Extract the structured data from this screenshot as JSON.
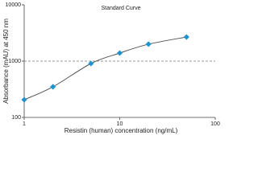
{
  "chart_data": {
    "type": "scatter",
    "title": "Standard Curve",
    "x_label": "Resistin (human) concentration (ng/mL)",
    "y_label": "Absorbance (mAU) at 450 nm",
    "x": [
      1,
      2,
      5,
      10,
      20,
      50
    ],
    "series": [
      {
        "color": "#1f93d0",
        "values": [
          206,
          350,
          906,
          1390,
          2000,
          2680
        ]
      }
    ],
    "fit_line": true,
    "fit_color": "#555555",
    "reference_line": 1000,
    "reference_color": "#777777",
    "x_log": true,
    "y_log": true,
    "xlim": [
      1,
      100
    ],
    "ylim": [
      100,
      10000
    ],
    "xticks": [
      1,
      10,
      100
    ],
    "yticks": [
      100,
      1000,
      10000
    ]
  }
}
